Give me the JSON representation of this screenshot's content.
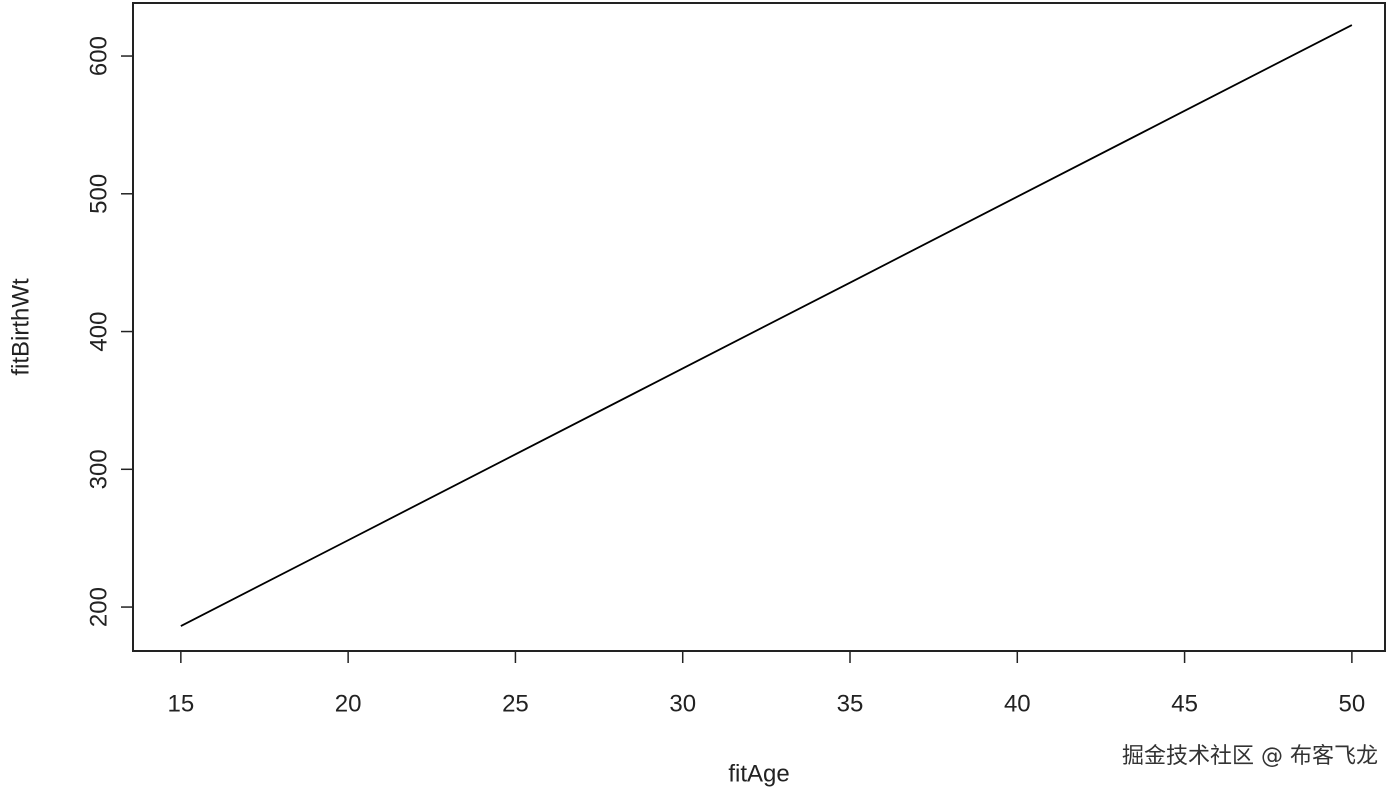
{
  "chart_data": {
    "type": "line",
    "x_label": "fitAge",
    "y_label": "fitBirthWt",
    "x": [
      15,
      20,
      25,
      30,
      35,
      40,
      45,
      50
    ],
    "series": [
      {
        "color": "#000000",
        "values": [
          186.2,
          248.5,
          310.9,
          373.2,
          435.5,
          497.9,
          560.2,
          622.5
        ]
      }
    ],
    "xlim": [
      13.57,
      50.99
    ],
    "xticks": [
      15,
      20,
      25,
      30,
      35,
      40,
      45,
      50
    ],
    "ylim": [
      168.1,
      638.5
    ],
    "yticks": [
      200,
      300,
      400,
      500,
      600
    ],
    "watermark": "掘金技术社区 @ 布客飞龙"
  }
}
